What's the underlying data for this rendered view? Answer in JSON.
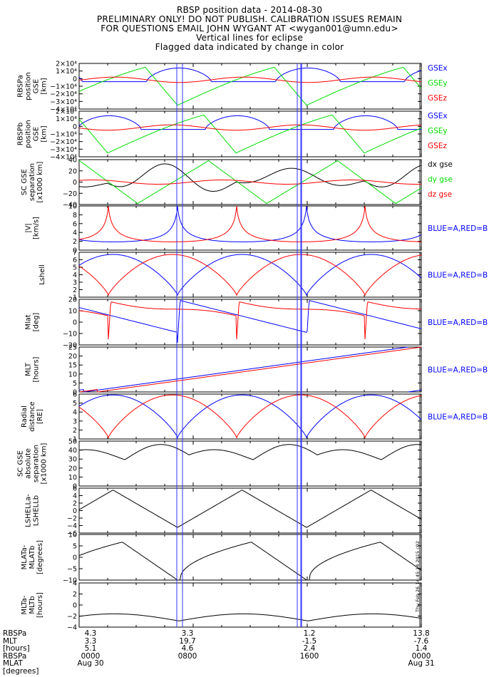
{
  "header": {
    "title": "RBSP position data - 2014-08-30",
    "line2": "PRELIMINARY ONLY! DO NOT PUBLISH. CALIBRATION ISSUES REMAIN",
    "line3": "FOR QUESTIONS EMAIL JOHN WYGANT AT <wygan001@umn.edu>",
    "line4": "Vertical lines for eclipse",
    "line5": "Flagged data indicated by change in color"
  },
  "colors": {
    "blue": "#0000ff",
    "red": "#ff0000",
    "green": "#00dd00",
    "black": "#000000",
    "eclipse": "#3333ff"
  },
  "eclipse_lines_hours": [
    6.85,
    7.25,
    15.3,
    15.55,
    15.6
  ],
  "chart_data": [
    {
      "type": "line",
      "ylabel": [
        "RBSPa",
        "position",
        "GSE",
        "[km]"
      ],
      "ylim": [
        -40000,
        20000
      ],
      "tick_labels": [
        "2×10⁴",
        "1×10⁴",
        "0",
        "−1×10⁴",
        "−2×10⁴",
        "−3×10⁴",
        "−4×10⁴"
      ],
      "series": [
        {
          "name": "GSEx",
          "color": "#0000ff"
        },
        {
          "name": "GSEy",
          "color": "#00dd00"
        },
        {
          "name": "GSEz",
          "color": "#ff0000"
        }
      ]
    },
    {
      "type": "line",
      "ylabel": [
        "RBSPb",
        "position",
        "GSE",
        "[km]"
      ],
      "ylim": [
        -40000,
        20000
      ],
      "tick_labels": [
        "2×10⁴",
        "1×10⁴",
        "0",
        "−1×10⁴",
        "−2×10⁴",
        "−3×10⁴",
        "−4×10⁴"
      ],
      "series": [
        {
          "name": "GSEx",
          "color": "#0000ff"
        },
        {
          "name": "GSEy",
          "color": "#00dd00"
        },
        {
          "name": "GSEz",
          "color": "#ff0000"
        }
      ]
    },
    {
      "type": "line",
      "ylabel": [
        "SC GSE",
        "separation",
        "[x1000 km]"
      ],
      "ylim": [
        -42,
        42
      ],
      "tick_labels": [
        "40",
        "20",
        "0",
        "−20",
        "−40"
      ],
      "series": [
        {
          "name": "dx gse",
          "color": "#000000"
        },
        {
          "name": "dy gse",
          "color": "#00dd00"
        },
        {
          "name": "dz gse",
          "color": "#ff0000"
        }
      ]
    },
    {
      "type": "line",
      "ylabel": [
        "|V|",
        "[km/s]"
      ],
      "ylim": [
        0,
        10
      ],
      "tick_labels": [
        "10",
        "8",
        "6",
        "4",
        "2",
        "0"
      ],
      "legend": "BLUE=A,RED=B"
    },
    {
      "type": "line",
      "ylabel": [
        "Lshell"
      ],
      "ylim": [
        1,
        7
      ],
      "tick_labels": [
        "7",
        "6",
        "5",
        "4",
        "3",
        "2",
        "1"
      ],
      "legend": "BLUE=A,RED=B"
    },
    {
      "type": "line",
      "ylabel": [
        "Mlat",
        "[deg]"
      ],
      "ylim": [
        -20,
        20
      ],
      "tick_labels": [
        "20",
        "10",
        "0",
        "−10",
        "−20"
      ],
      "legend": "BLUE=A,RED=B"
    },
    {
      "type": "line",
      "ylabel": [
        "MLT",
        "[hours]"
      ],
      "ylim": [
        0,
        25
      ],
      "tick_labels": [
        "25",
        "20",
        "15",
        "10",
        "5",
        "0"
      ],
      "legend": "BLUE=A,RED=B"
    },
    {
      "type": "line",
      "ylabel": [
        "Radial",
        "distance",
        "[RE]"
      ],
      "ylim": [
        1,
        6.2
      ],
      "tick_labels": [
        "6",
        "5",
        "4",
        "3",
        "2",
        "1"
      ],
      "legend": "BLUE=A,RED=B"
    },
    {
      "type": "line",
      "ylabel": [
        "SC GSE",
        "absolute",
        "separation",
        "[x1000 km]"
      ],
      "ylim": [
        0,
        50
      ],
      "tick_labels": [
        "50",
        "40",
        "30",
        "20",
        "10",
        "0"
      ]
    },
    {
      "type": "line",
      "ylabel": [
        "LSHELLa-",
        "LSHELLb"
      ],
      "ylim": [
        -6,
        6
      ],
      "tick_labels": [
        "6",
        "4",
        "2",
        "0",
        "−2",
        "−4",
        "−6"
      ]
    },
    {
      "type": "line",
      "ylabel": [
        "MLATa-",
        "MLATb",
        "[degrees]"
      ],
      "ylim": [
        -12,
        12
      ],
      "tick_labels": [
        "10",
        "5",
        "0",
        "−5",
        "−10"
      ]
    },
    {
      "type": "line",
      "ylabel": [
        "MLTa-",
        "MLTb",
        "[hours]"
      ],
      "ylim": [
        -5,
        5
      ],
      "tick_labels": [
        "4",
        "2",
        "0",
        "−2",
        "−4"
      ]
    }
  ],
  "footer": {
    "row_labels": [
      "RBSPa",
      "MLT",
      "[hours]",
      "RBSPa",
      "MLAT",
      "[degrees]"
    ],
    "columns": [
      {
        "lines": [
          "4.3",
          "3.3",
          "5.1",
          "0000",
          "Aug 30"
        ]
      },
      {
        "lines": [
          "3.3",
          "19.7",
          "4.6",
          "0800",
          ""
        ]
      },
      {
        "lines": [
          "1.2",
          "-1.5",
          "2.4",
          "1600",
          ""
        ]
      },
      {
        "lines": [
          "13.8",
          "-7.6",
          "1.4",
          "0000",
          "Aug 31"
        ]
      }
    ],
    "stamp": "Thu Feb 26 14:45:14 2015 c02"
  }
}
